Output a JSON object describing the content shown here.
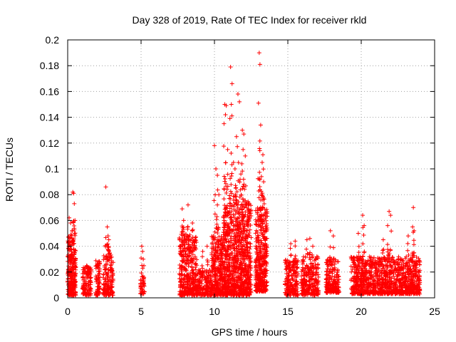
{
  "chart_data": {
    "type": "scatter",
    "title": "Day 328 of 2019, Rate Of TEC Index for receiver rkld",
    "xlabel": "GPS time / hours",
    "ylabel": "ROTI / TECUs",
    "xlim": [
      0,
      25
    ],
    "ylim": [
      0,
      0.2
    ],
    "xticks": [
      "0",
      "5",
      "10",
      "15",
      "20",
      "25"
    ],
    "yticks": [
      "0",
      "0.02",
      "0.04",
      "0.06",
      "0.08",
      "0.1",
      "0.12",
      "0.14",
      "0.16",
      "0.18",
      "0.2"
    ],
    "grid": true,
    "marker": "+",
    "color": "#ff0000",
    "series": [
      {
        "name": "ROTI",
        "clusters": [
          {
            "x_start": 0.0,
            "x_end": 0.55,
            "y_min": 0.002,
            "y_max": 0.045,
            "count": 260,
            "peaks": [
              [
                0.1,
                0.062
              ],
              [
                0.2,
                0.058
              ],
              [
                0.3,
                0.052
              ],
              [
                0.35,
                0.082
              ],
              [
                0.4,
                0.081
              ],
              [
                0.45,
                0.073
              ],
              [
                0.5,
                0.06
              ]
            ]
          },
          {
            "x_start": 1.0,
            "x_end": 1.6,
            "y_min": 0.002,
            "y_max": 0.024,
            "count": 120,
            "peaks": [
              [
                1.3,
                0.025
              ]
            ]
          },
          {
            "x_start": 1.9,
            "x_end": 2.2,
            "y_min": 0.002,
            "y_max": 0.03,
            "count": 70,
            "peaks": []
          },
          {
            "x_start": 2.4,
            "x_end": 3.1,
            "y_min": 0.002,
            "y_max": 0.035,
            "count": 160,
            "peaks": [
              [
                2.6,
                0.086
              ],
              [
                2.7,
                0.055
              ],
              [
                2.75,
                0.048
              ],
              [
                2.8,
                0.045
              ]
            ]
          },
          {
            "x_start": 4.95,
            "x_end": 5.25,
            "y_min": 0.003,
            "y_max": 0.015,
            "count": 40,
            "peaks": [
              [
                5.05,
                0.04
              ],
              [
                5.1,
                0.036
              ],
              [
                5.15,
                0.03
              ]
            ]
          },
          {
            "x_start": 7.6,
            "x_end": 8.8,
            "y_min": 0.002,
            "y_max": 0.05,
            "count": 380,
            "peaks": [
              [
                7.8,
                0.069
              ],
              [
                7.9,
                0.06
              ],
              [
                8.2,
                0.072
              ],
              [
                8.5,
                0.058
              ]
            ]
          },
          {
            "x_start": 8.8,
            "x_end": 9.8,
            "y_min": 0.002,
            "y_max": 0.022,
            "count": 170,
            "peaks": [
              [
                9.2,
                0.036
              ],
              [
                9.5,
                0.04
              ]
            ]
          },
          {
            "x_start": 9.8,
            "x_end": 10.6,
            "y_min": 0.002,
            "y_max": 0.05,
            "count": 300,
            "peaks": [
              [
                10.0,
                0.118
              ],
              [
                10.1,
                0.1
              ],
              [
                10.2,
                0.095
              ],
              [
                10.3,
                0.08
              ],
              [
                10.2,
                0.072
              ]
            ]
          },
          {
            "x_start": 10.6,
            "x_end": 12.5,
            "y_min": 0.002,
            "y_max": 0.075,
            "count": 900,
            "peaks": [
              [
                10.7,
                0.15
              ],
              [
                10.8,
                0.149
              ],
              [
                10.75,
                0.142
              ],
              [
                10.65,
                0.135
              ],
              [
                10.9,
                0.115
              ],
              [
                11.1,
                0.179
              ],
              [
                11.2,
                0.166
              ],
              [
                11.15,
                0.15
              ],
              [
                11.05,
                0.139
              ],
              [
                11.3,
                0.105
              ],
              [
                11.4,
                0.1
              ],
              [
                11.6,
                0.158
              ],
              [
                11.7,
                0.152
              ],
              [
                11.5,
                0.125
              ],
              [
                11.9,
                0.13
              ],
              [
                12.0,
                0.127
              ],
              [
                11.95,
                0.115
              ],
              [
                11.8,
                0.096
              ],
              [
                11.45,
                0.085
              ],
              [
                12.1,
                0.11
              ]
            ]
          },
          {
            "x_start": 12.8,
            "x_end": 13.6,
            "y_min": 0.005,
            "y_max": 0.07,
            "count": 380,
            "peaks": [
              [
                13.05,
                0.19
              ],
              [
                13.1,
                0.181
              ],
              [
                13.0,
                0.151
              ],
              [
                13.15,
                0.134
              ],
              [
                13.3,
                0.111
              ],
              [
                13.25,
                0.105
              ],
              [
                13.2,
                0.094
              ],
              [
                13.35,
                0.09
              ]
            ]
          },
          {
            "x_start": 14.8,
            "x_end": 15.7,
            "y_min": 0.002,
            "y_max": 0.03,
            "count": 200,
            "peaks": [
              [
                15.2,
                0.042
              ],
              [
                15.5,
                0.044
              ]
            ]
          },
          {
            "x_start": 15.9,
            "x_end": 17.1,
            "y_min": 0.002,
            "y_max": 0.032,
            "count": 240,
            "peaks": [
              [
                16.3,
                0.045
              ],
              [
                16.5,
                0.046
              ],
              [
                16.7,
                0.04
              ]
            ]
          },
          {
            "x_start": 17.6,
            "x_end": 18.5,
            "y_min": 0.004,
            "y_max": 0.03,
            "count": 190,
            "peaks": [
              [
                17.9,
                0.052
              ],
              [
                18.1,
                0.048
              ]
            ]
          },
          {
            "x_start": 19.3,
            "x_end": 24.0,
            "y_min": 0.003,
            "y_max": 0.032,
            "count": 1100,
            "peaks": [
              [
                19.8,
                0.05
              ],
              [
                20.1,
                0.064
              ],
              [
                20.2,
                0.056
              ],
              [
                21.5,
                0.045
              ],
              [
                21.9,
                0.067
              ],
              [
                22.0,
                0.064
              ],
              [
                21.8,
                0.056
              ],
              [
                23.2,
                0.048
              ],
              [
                23.5,
                0.055
              ],
              [
                23.6,
                0.052
              ],
              [
                23.55,
                0.07
              ]
            ]
          }
        ]
      }
    ]
  }
}
